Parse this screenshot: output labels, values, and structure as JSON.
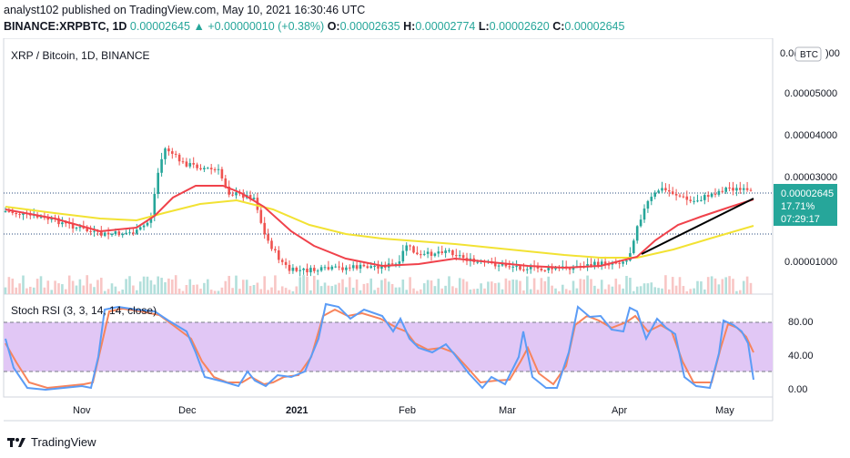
{
  "header": {
    "line1": "analyst102 published on TradingView.com, May 10, 2021 16:30:46 UTC",
    "symbol": "BINANCE:XRPBTC, 1D",
    "price": "0.00002645",
    "change": "+0.00000010 (+0.38%)",
    "o_label": "O:",
    "o_value": "0.00002635",
    "h_label": "H:",
    "h_value": "0.00002774",
    "l_label": "L:",
    "l_value": "0.00002620",
    "c_label": "C:",
    "c_value": "0.00002645"
  },
  "chart": {
    "title": "XRP / Bitcoin, 1D, BINANCE",
    "currency_badge": "BTC",
    "price_ticks": [
      "0.00005000",
      "0.00004000",
      "0.00003000",
      "0.00001000"
    ],
    "top_tick": "0.0(",
    "top_tick_tail": ")00",
    "last_price": "0.00002645",
    "last_change": "17.71%",
    "countdown": "07:29:17",
    "stoch_title": "Stoch RSI (3, 3, 14, 14, close)",
    "stoch_ticks": [
      "80.00",
      "40.00",
      "0.00"
    ],
    "time_labels": [
      "Nov",
      "Dec",
      "2021",
      "Feb",
      "Mar",
      "Apr",
      "May"
    ]
  },
  "footer": {
    "brand": "TradingView"
  },
  "colors": {
    "up": "#26a69a",
    "down": "#ef5350",
    "ma_fast": "#f0424b",
    "ma_slow": "#f2e233",
    "stoch_k": "#5b9cf6",
    "stoch_d": "#f7845c",
    "stoch_band": "#e1c7f5"
  }
}
